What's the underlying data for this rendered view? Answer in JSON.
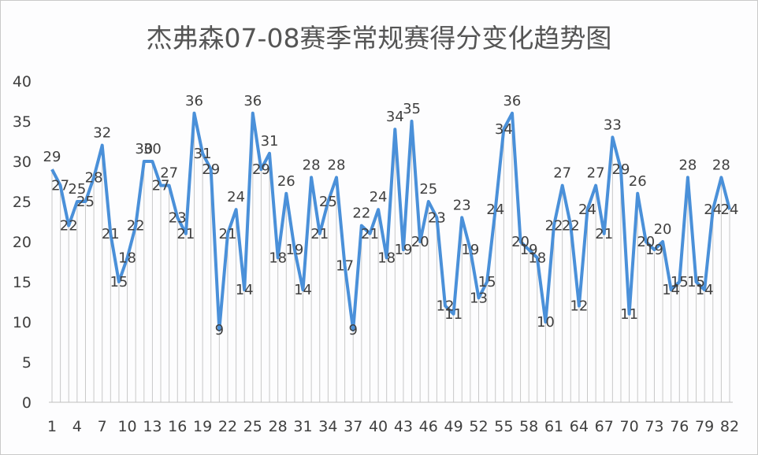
{
  "chart_data": {
    "type": "line",
    "title": "杰弗森07-08赛季常规赛得分变化趋势图",
    "xlabel": "",
    "ylabel": "",
    "ylim": [
      0,
      40
    ],
    "yticks": [
      0,
      5,
      10,
      15,
      20,
      25,
      30,
      35,
      40
    ],
    "xtick_labels": [
      "1",
      "4",
      "7",
      "10",
      "13",
      "16",
      "19",
      "22",
      "25",
      "28",
      "31",
      "34",
      "37",
      "40",
      "43",
      "46",
      "49",
      "52",
      "55",
      "58",
      "61",
      "64",
      "67",
      "70",
      "73",
      "76",
      "79",
      "82"
    ],
    "x": [
      1,
      2,
      3,
      4,
      5,
      6,
      7,
      8,
      9,
      10,
      11,
      12,
      13,
      14,
      15,
      16,
      17,
      18,
      19,
      20,
      21,
      22,
      23,
      24,
      25,
      26,
      27,
      28,
      29,
      30,
      31,
      32,
      33,
      34,
      35,
      36,
      37,
      38,
      39,
      40,
      41,
      42,
      43,
      44,
      45,
      46,
      47,
      48,
      49,
      50,
      51,
      52,
      53,
      54,
      55,
      56,
      57,
      58,
      59,
      60,
      61,
      62,
      63,
      64,
      65,
      66,
      67,
      68,
      69,
      70,
      71,
      72,
      73,
      74,
      75,
      76,
      77,
      78,
      79,
      80,
      81,
      82
    ],
    "series": [
      {
        "name": "得分",
        "color": "#4a90d9",
        "values": [
          29,
          27,
          22,
          25,
          25,
          28,
          32,
          21,
          15,
          18,
          22,
          30,
          30,
          27,
          27,
          23,
          21,
          36,
          31,
          29,
          9,
          21,
          24,
          14,
          36,
          29,
          31,
          18,
          26,
          19,
          14,
          28,
          21,
          25,
          28,
          17,
          9,
          22,
          21,
          24,
          18,
          34,
          19,
          35,
          20,
          25,
          23,
          12,
          11,
          23,
          19,
          13,
          15,
          24,
          34,
          36,
          20,
          19,
          18,
          10,
          22,
          27,
          22,
          12,
          24,
          27,
          21,
          33,
          29,
          11,
          26,
          20,
          19,
          20,
          14,
          15,
          28,
          15,
          14,
          24,
          28,
          24
        ]
      }
    ],
    "grid": false,
    "drop_lines": true,
    "data_labels": true,
    "legend": "none"
  }
}
